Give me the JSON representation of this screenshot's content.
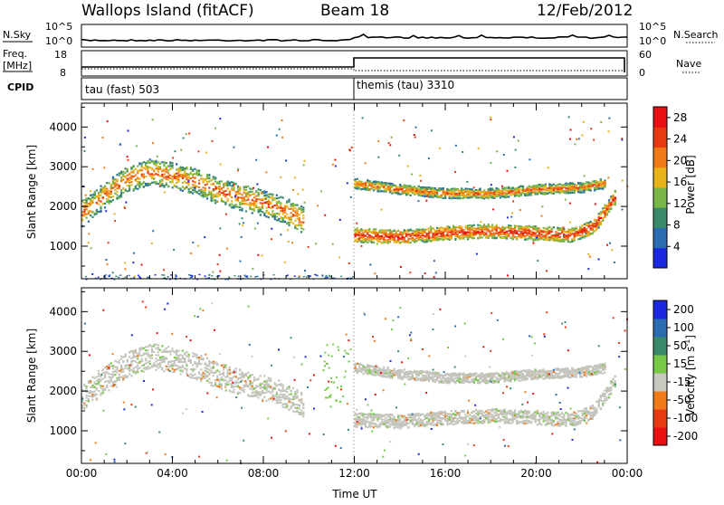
{
  "header": {
    "station": "Wallops Island (fitACF)",
    "beam": "Beam 18",
    "date": "12/Feb/2012"
  },
  "strips": {
    "nsky_label": "N.Sky",
    "nsearch_label": "N.Search",
    "noise_ticks": [
      "10^5",
      "10^0"
    ],
    "freq_label": "Freq.",
    "freq_unit": "[MHz]",
    "freq_ticks": [
      "18",
      "8"
    ],
    "nave_label": "Nave",
    "nave_ticks": [
      "60",
      "0"
    ],
    "cpid_label": "CPID",
    "cpid_modes": [
      {
        "name": "tau (fast) 503",
        "start": "00:00"
      },
      {
        "name": "themis (tau) 3310",
        "start": "12:00"
      }
    ]
  },
  "chart_data": [
    {
      "type": "heatmap",
      "panel": "power",
      "ylabel": "Slant Range [km]",
      "xlabel": "Time UT",
      "x_ticks": [
        "00:00",
        "04:00",
        "08:00",
        "12:00",
        "16:00",
        "20:00",
        "00:00"
      ],
      "xlim_hours": [
        0,
        24
      ],
      "y_ticks": [
        1000,
        2000,
        3000,
        4000
      ],
      "ylim_km": [
        180,
        4600
      ],
      "colorbar": {
        "label": "Power [dB]",
        "ticks": [
          4,
          8,
          12,
          16,
          20,
          24,
          28
        ],
        "range": [
          0,
          30
        ],
        "colors": [
          "#1a28e0",
          "#2a6cb0",
          "#3a8a6a",
          "#78b648",
          "#e8b21a",
          "#f07a18",
          "#e83a12",
          "#e81010"
        ]
      },
      "echo_bands": [
        {
          "t": [
            0.0,
            1.0,
            2.0,
            3.0,
            4.0,
            5.0,
            6.0,
            7.0,
            8.0,
            9.0,
            9.8
          ],
          "r": [
            1850,
            2300,
            2700,
            2900,
            2800,
            2650,
            2400,
            2250,
            2100,
            1900,
            1650
          ],
          "width_km": 650,
          "power": 24
        },
        {
          "t": [
            12.0,
            14.0,
            16.0,
            18.0,
            20.0,
            22.0,
            23.0
          ],
          "r": [
            2600,
            2450,
            2350,
            2350,
            2450,
            2500,
            2600
          ],
          "width_km": 250,
          "power": 24
        },
        {
          "t": [
            12.0,
            14.0,
            16.0,
            18.0,
            20.0,
            21.5,
            22.5,
            23.5
          ],
          "r": [
            1300,
            1250,
            1350,
            1400,
            1350,
            1300,
            1500,
            2300
          ],
          "width_km": 350,
          "power": 28
        }
      ]
    },
    {
      "type": "heatmap",
      "panel": "velocity",
      "ylabel": "Slant Range [km]",
      "xlabel": "Time UT",
      "x_ticks": [
        "00:00",
        "04:00",
        "08:00",
        "12:00",
        "16:00",
        "20:00",
        "00:00"
      ],
      "xlim_hours": [
        0,
        24
      ],
      "y_ticks": [
        1000,
        2000,
        3000,
        4000
      ],
      "ylim_km": [
        180,
        4600
      ],
      "colorbar": {
        "label": "Velocity [m s",
        "label_sup": "-1",
        "label_tail": "]",
        "ticks": [
          200,
          100,
          50,
          15,
          -15,
          -50,
          -100,
          -200
        ],
        "colors": [
          "#1a28e0",
          "#2a6cb0",
          "#3a8a6a",
          "#78c848",
          "#c8c8c0",
          "#f07a18",
          "#e83a12",
          "#e81010"
        ]
      },
      "ground_scatter_color": "#c4c4bc"
    }
  ]
}
